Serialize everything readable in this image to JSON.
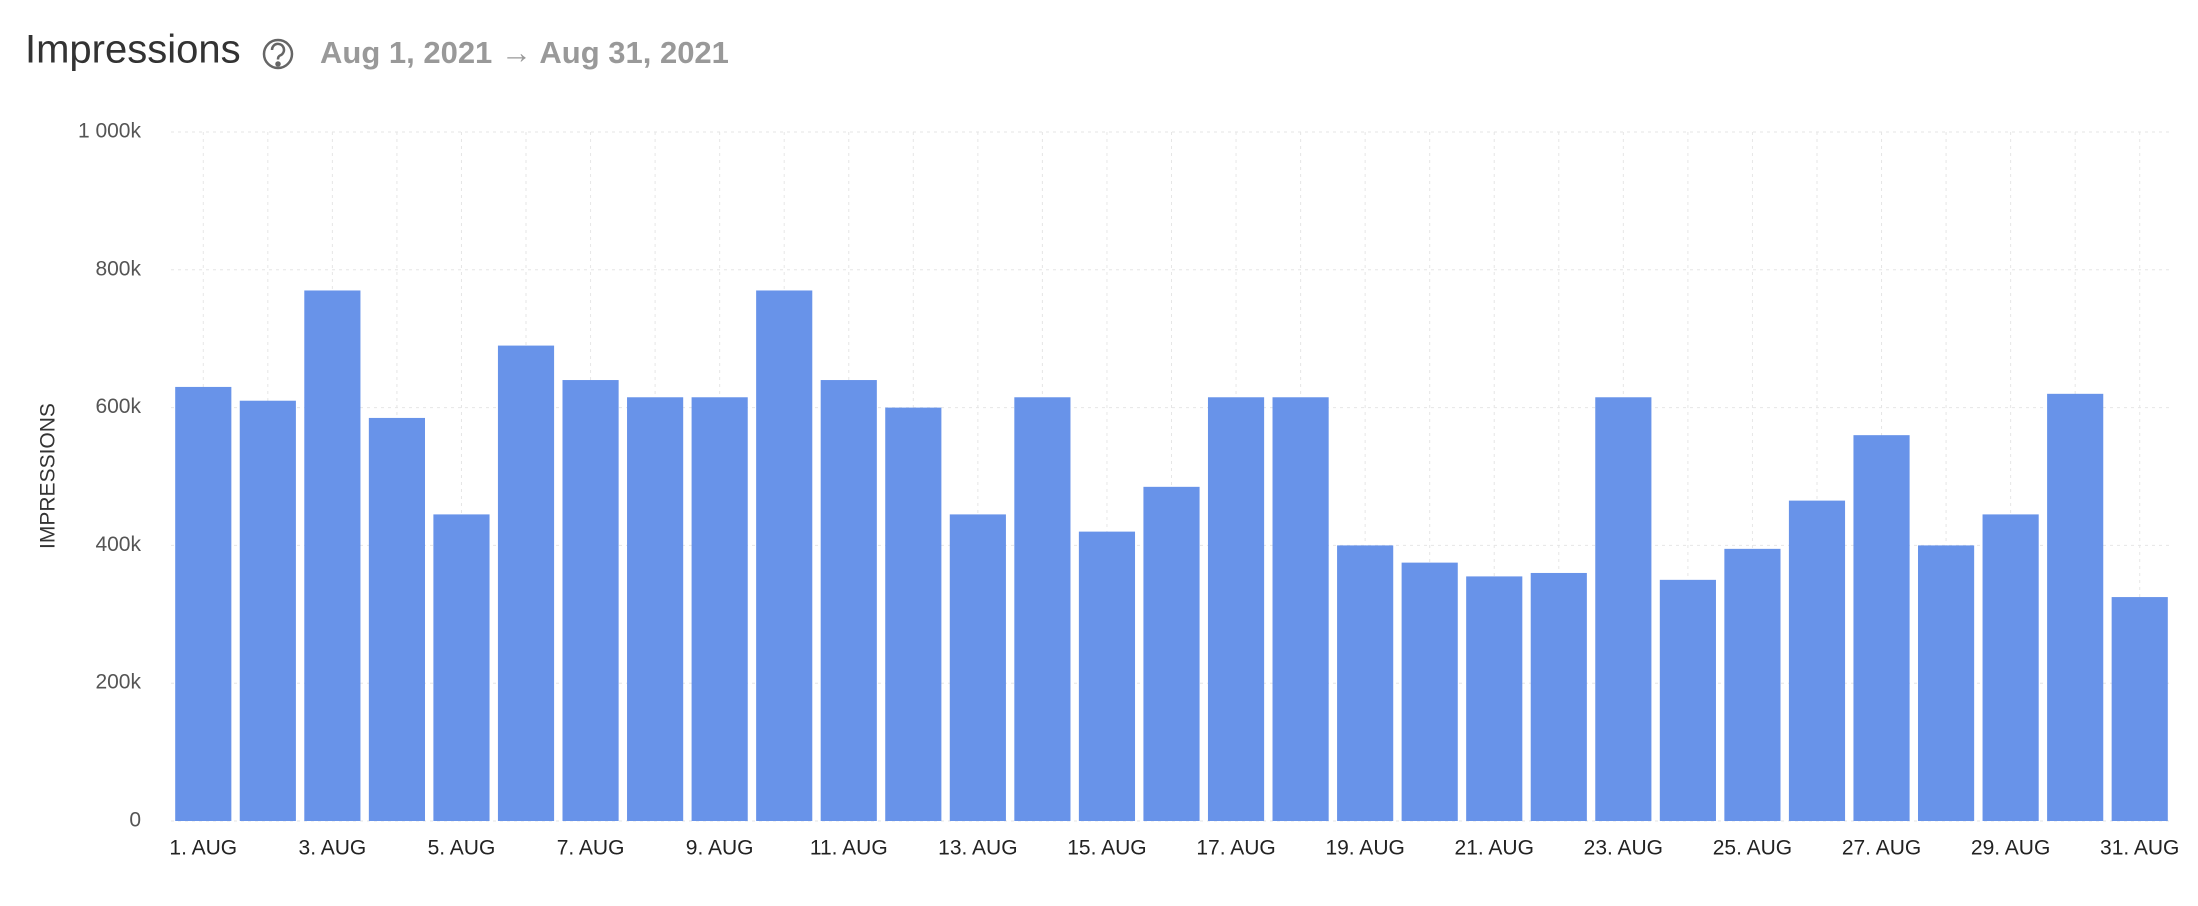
{
  "chart_data": {
    "type": "bar",
    "title": "Impressions",
    "subtitle": "Aug 1, 2021 → Aug 31, 2021",
    "y_label": "IMPRESSIONS",
    "categories": [
      "1. AUG",
      null,
      "3. AUG",
      null,
      "5. AUG",
      null,
      "7. AUG",
      null,
      "9. AUG",
      null,
      "11. AUG",
      null,
      "13. AUG",
      null,
      "15. AUG",
      null,
      "17. AUG",
      null,
      "19. AUG",
      null,
      "21. AUG",
      null,
      "23. AUG",
      null,
      "25. AUG",
      null,
      "27. AUG",
      null,
      "29. AUG",
      null,
      "31. AUG"
    ],
    "values": [
      630000,
      610000,
      770000,
      585000,
      445000,
      690000,
      640000,
      615000,
      615000,
      770000,
      640000,
      600000,
      445000,
      615000,
      420000,
      485000,
      615000,
      615000,
      400000,
      375000,
      355000,
      360000,
      615000,
      350000,
      395000,
      465000,
      560000,
      400000,
      445000,
      620000,
      325000
    ],
    "color": "#6893e9",
    "ylim": [
      0,
      1000000
    ],
    "yticks": [
      {
        "value": 0,
        "label": "0"
      },
      {
        "value": 200000,
        "label": "200k"
      },
      {
        "value": 400000,
        "label": "400k"
      },
      {
        "value": 600000,
        "label": "600k"
      },
      {
        "value": 800000,
        "label": "800k"
      },
      {
        "value": 1000000,
        "label": "1 000k"
      }
    ],
    "grid": true
  }
}
